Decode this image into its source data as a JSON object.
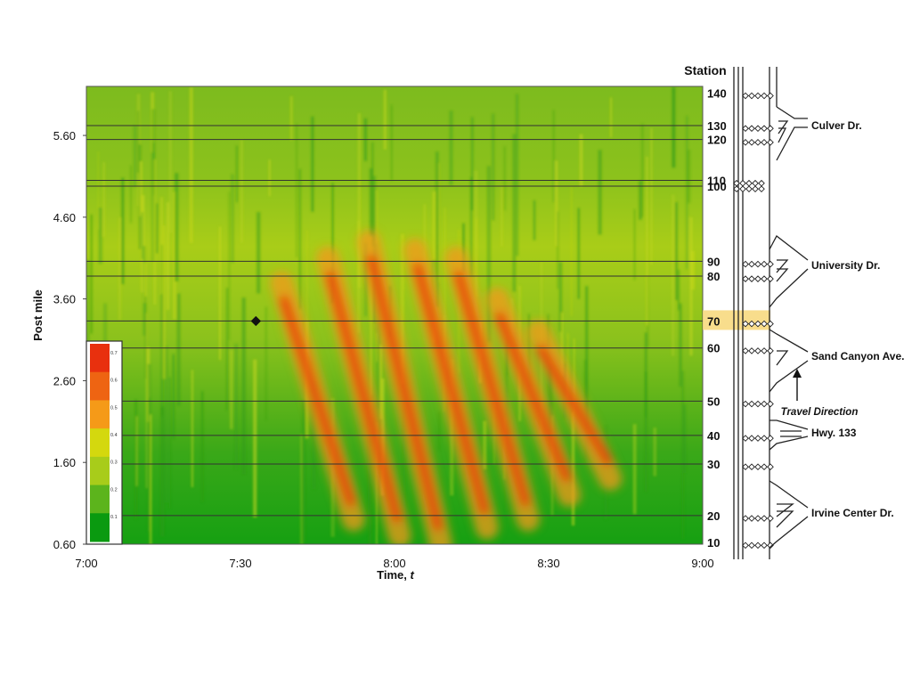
{
  "chart_data": {
    "type": "heatmap",
    "xlabel": "Time, ",
    "xlabel_italic": "t",
    "ylabel": "Post mile",
    "x_ticks": [
      "7:00",
      "7:30",
      "8:00",
      "8:30",
      "9:00"
    ],
    "x_range_minutes": [
      0,
      120
    ],
    "y_ticks": [
      "0.60",
      "1.60",
      "2.60",
      "3.60",
      "4.60",
      "5.60"
    ],
    "y_range": [
      0.6,
      6.2
    ],
    "colorbar": {
      "ticks": [
        "0.1",
        "0.2",
        "0.3",
        "0.4",
        "0.5",
        "0.6",
        "0.7"
      ],
      "colors": [
        "#0a9a10",
        "#5cb41c",
        "#a8cc1a",
        "#d4d80e",
        "#f59a18",
        "#ee6412",
        "#e8300e"
      ]
    },
    "station_header": "Station",
    "stations": [
      {
        "id": "140",
        "postmile": 6.12
      },
      {
        "id": "130",
        "postmile": 5.72
      },
      {
        "id": "120",
        "postmile": 5.55
      },
      {
        "id": "110",
        "postmile": 5.05
      },
      {
        "id": "100",
        "postmile": 4.98
      },
      {
        "id": "90",
        "postmile": 4.06
      },
      {
        "id": "80",
        "postmile": 3.88
      },
      {
        "id": "70",
        "postmile": 3.33,
        "highlighted": true
      },
      {
        "id": "60",
        "postmile": 3.0
      },
      {
        "id": "50",
        "postmile": 2.35
      },
      {
        "id": "40",
        "postmile": 1.93
      },
      {
        "id": "30",
        "postmile": 1.58
      },
      {
        "id": "20",
        "postmile": 0.95
      },
      {
        "id": "10",
        "postmile": 0.62
      }
    ],
    "marker": {
      "time_minutes": 33,
      "postmile": 3.33
    },
    "congestion_waves": [
      {
        "t": 38,
        "p_top": 3.8,
        "p_bot": 0.9
      },
      {
        "t": 47,
        "p_top": 4.1,
        "p_bot": 0.7
      },
      {
        "t": 55,
        "p_top": 4.3,
        "p_bot": 0.6
      },
      {
        "t": 64,
        "p_top": 4.2,
        "p_bot": 0.8
      },
      {
        "t": 72,
        "p_top": 4.1,
        "p_bot": 0.9
      },
      {
        "t": 80,
        "p_top": 3.6,
        "p_bot": 1.2
      },
      {
        "t": 88,
        "p_top": 3.2,
        "p_bot": 1.4
      }
    ],
    "interchanges": [
      "Culver Dr.",
      "University Dr.",
      "Sand Canyon Ave.",
      "Hwy. 133",
      "Irvine Center Dr."
    ],
    "travel_direction": "Travel Direction"
  }
}
